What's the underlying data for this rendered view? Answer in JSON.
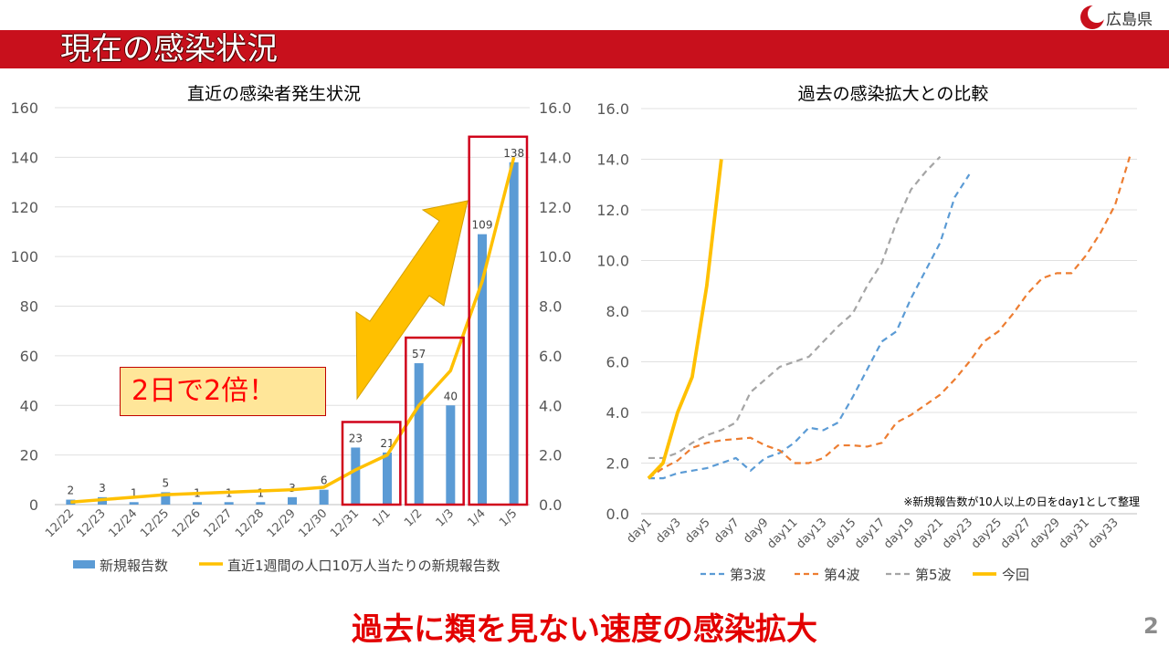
{
  "header": {
    "title": "現在の感染状況",
    "logo_text": "広島県",
    "page_number": "2"
  },
  "footer": {
    "headline": "過去に類を見ない速度の感染拡大"
  },
  "callout": {
    "text": "2日で2倍！"
  },
  "colors": {
    "accent_red": "#c8101c",
    "bar_blue": "#5b9bd5",
    "line_yellow": "#ffc000",
    "wave4_orange": "#ed7d31",
    "wave5_gray": "#a5a5a5"
  },
  "chart_data": [
    {
      "type": "bar",
      "title": "直近の感染者発生状況",
      "categories": [
        "12/22",
        "12/23",
        "12/24",
        "12/25",
        "12/26",
        "12/27",
        "12/28",
        "12/29",
        "12/30",
        "12/31",
        "1/1",
        "1/2",
        "1/3",
        "1/4",
        "1/5"
      ],
      "left_ticks": [
        "0",
        "20",
        "40",
        "60",
        "80",
        "100",
        "120",
        "140",
        "160"
      ],
      "right_ticks": [
        "0.0",
        "2.0",
        "4.0",
        "6.0",
        "8.0",
        "10.0",
        "12.0",
        "14.0",
        "16.0"
      ],
      "ylim": [
        0,
        160
      ],
      "y2lim": [
        0,
        16
      ],
      "series": [
        {
          "name": "新規報告数",
          "type": "bar",
          "axis": "left",
          "values": [
            2,
            3,
            1,
            5,
            1,
            1,
            1,
            3,
            6,
            23,
            21,
            57,
            40,
            109,
            138
          ],
          "labels": [
            "2",
            "3",
            "1",
            "5",
            "1",
            "1",
            "1",
            "3",
            "6",
            "23",
            "21",
            "57",
            "40",
            "109",
            "138"
          ]
        },
        {
          "name": "直近1週間の人口10万人当たりの新規報告数",
          "type": "line",
          "axis": "right",
          "values": [
            0.1,
            0.2,
            0.3,
            0.4,
            0.45,
            0.5,
            0.55,
            0.6,
            0.7,
            1.4,
            2.0,
            4.0,
            5.4,
            9.0,
            14.0
          ]
        }
      ],
      "highlight_boxes": [
        [
          9,
          10
        ],
        [
          11,
          12
        ],
        [
          13,
          14
        ]
      ],
      "legend": "bottom"
    },
    {
      "type": "line",
      "title": "過去の感染拡大との比較",
      "note": "※新規報告数が10人以上の日をday1として整理",
      "x_tick_labels": [
        "day1",
        "day3",
        "day5",
        "day7",
        "day9",
        "day11",
        "day13",
        "day15",
        "day17",
        "day19",
        "day21",
        "day23",
        "day25",
        "day27",
        "day29",
        "day31",
        "day33"
      ],
      "ylim": [
        0,
        16
      ],
      "y_ticks": [
        "0.0",
        "2.0",
        "4.0",
        "6.0",
        "8.0",
        "10.0",
        "12.0",
        "14.0",
        "16.0"
      ],
      "series": [
        {
          "name": "第3波",
          "dash": true,
          "color": "#5b9bd5",
          "values": [
            1.4,
            1.4,
            1.6,
            1.7,
            1.8,
            2.0,
            2.2,
            1.7,
            2.2,
            2.4,
            2.8,
            3.4,
            3.3,
            3.6,
            4.6,
            5.7,
            6.8,
            7.2,
            8.5,
            9.6,
            10.7,
            12.5,
            13.4
          ]
        },
        {
          "name": "第4波",
          "dash": true,
          "color": "#ed7d31",
          "values": [
            1.4,
            1.8,
            2.1,
            2.6,
            2.8,
            2.9,
            2.95,
            3.0,
            2.7,
            2.5,
            2.0,
            2.0,
            2.2,
            2.7,
            2.7,
            2.65,
            2.8,
            3.6,
            3.9,
            4.3,
            4.7,
            5.3,
            6.0,
            6.8,
            7.2,
            7.9,
            8.7,
            9.3,
            9.5,
            9.5,
            10.2,
            11.1,
            12.2,
            14.1
          ]
        },
        {
          "name": "第5波",
          "dash": true,
          "color": "#a5a5a5",
          "values": [
            2.2,
            2.2,
            2.4,
            2.8,
            3.1,
            3.3,
            3.6,
            4.8,
            5.3,
            5.8,
            6.0,
            6.2,
            6.8,
            7.4,
            7.9,
            9.0,
            9.9,
            11.5,
            12.8,
            13.5,
            14.1
          ]
        },
        {
          "name": "今回",
          "dash": false,
          "color": "#ffc000",
          "values": [
            1.4,
            2.0,
            4.0,
            5.4,
            9.0,
            14.0
          ]
        }
      ],
      "legend": "bottom"
    }
  ]
}
